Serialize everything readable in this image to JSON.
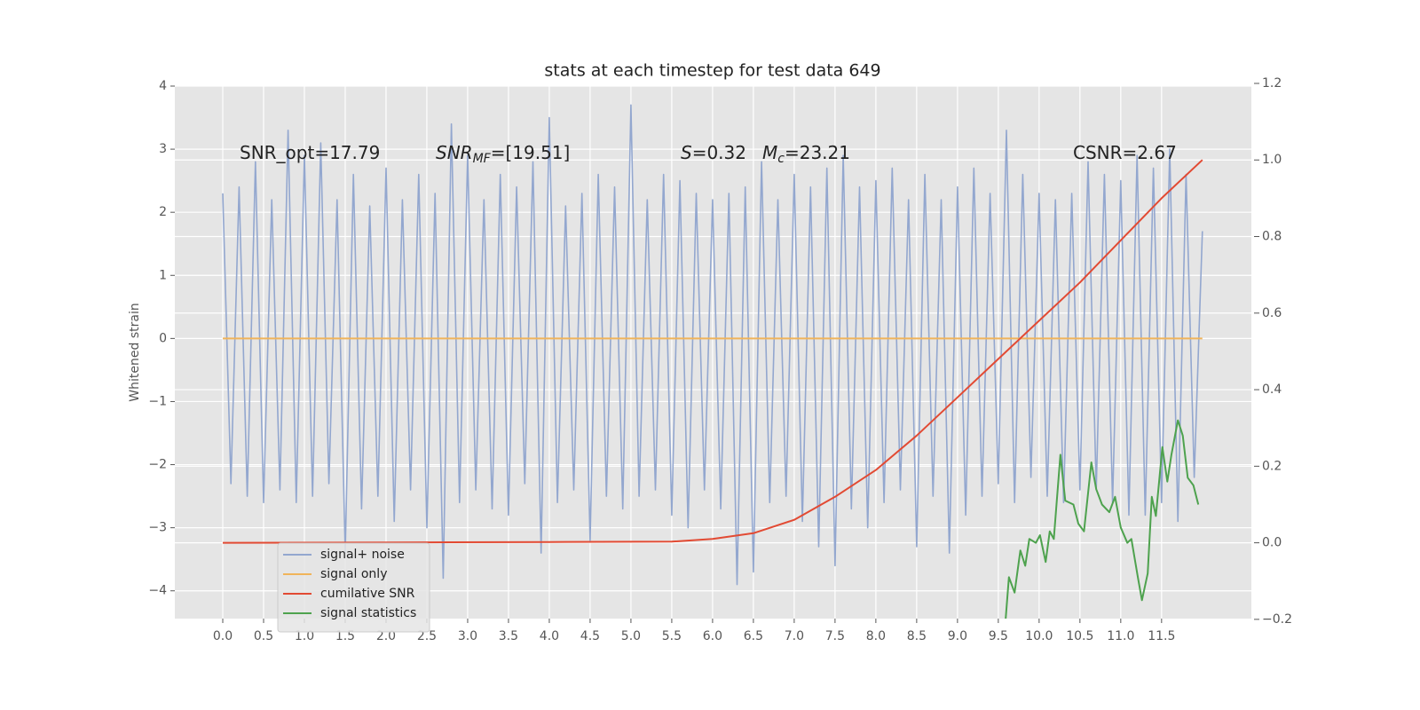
{
  "chart_data": {
    "type": "line",
    "title": "stats at each timestep for test data 649",
    "ylabel": "Whitened strain",
    "xlim": [
      -0.587,
      12.6
    ],
    "ylim": [
      -4.44,
      4.0
    ],
    "y2lim": [
      -0.198,
      1.193
    ],
    "grid": true,
    "legend": "lower left",
    "xticks": [
      {
        "value": 0,
        "label": "0.0"
      },
      {
        "value": 0.5,
        "label": "0.5"
      },
      {
        "value": 1,
        "label": "1.0"
      },
      {
        "value": 1.5,
        "label": "1.5"
      },
      {
        "value": 2,
        "label": "2.0"
      },
      {
        "value": 2.5,
        "label": "2.5"
      },
      {
        "value": 3,
        "label": "3.0"
      },
      {
        "value": 3.5,
        "label": "3.5"
      },
      {
        "value": 4,
        "label": "4.0"
      },
      {
        "value": 4.5,
        "label": "4.5"
      },
      {
        "value": 5,
        "label": "5.0"
      },
      {
        "value": 5.5,
        "label": "5.5"
      },
      {
        "value": 6,
        "label": "6.0"
      },
      {
        "value": 6.5,
        "label": "6.5"
      },
      {
        "value": 7,
        "label": "7.0"
      },
      {
        "value": 7.5,
        "label": "7.5"
      },
      {
        "value": 8,
        "label": "8.0"
      },
      {
        "value": 8.5,
        "label": "8.5"
      },
      {
        "value": 9,
        "label": "9.0"
      },
      {
        "value": 9.5,
        "label": "9.5"
      },
      {
        "value": 10,
        "label": "10.0"
      },
      {
        "value": 10.5,
        "label": "10.5"
      },
      {
        "value": 11,
        "label": "11.0"
      },
      {
        "value": 11.5,
        "label": "11.5"
      }
    ],
    "yticks": [
      4,
      3,
      2,
      1,
      0,
      {
        "value": -1,
        "label": "−1"
      },
      {
        "value": -2,
        "label": "−2"
      },
      {
        "value": -3,
        "label": "−3"
      },
      {
        "value": -4,
        "label": "−4"
      }
    ],
    "y2ticks": [
      1.2,
      {
        "value": 1,
        "label": "1.0"
      },
      0.8,
      0.6,
      0.4,
      0.2,
      {
        "value": 0,
        "label": "0.0"
      },
      {
        "value": -0.2,
        "label": "−0.2"
      }
    ],
    "annotations": [
      {
        "text": "SNR_opt=17.79"
      },
      {
        "text": "SNR",
        "sub": "MF",
        "rest": "=[19.51]"
      },
      {
        "text": "S",
        "rest": "=0.32"
      },
      {
        "text": "M",
        "sub": "c",
        "rest": "=23.21"
      },
      {
        "text": "CSNR=2.67"
      }
    ],
    "series": [
      {
        "name": "signal+ noise",
        "color": "#93a7cf",
        "x": [
          0,
          0.1,
          0.2,
          0.3,
          0.4,
          0.5,
          0.6,
          0.7,
          0.8,
          0.9,
          1,
          1.1,
          1.2,
          1.3,
          1.4,
          1.5,
          1.6,
          1.7,
          1.8,
          1.9,
          2,
          2.1,
          2.2,
          2.3,
          2.4,
          2.5,
          2.6,
          2.7,
          2.8,
          2.9,
          3,
          3.1,
          3.2,
          3.3,
          3.4,
          3.5,
          3.6,
          3.7,
          3.8,
          3.9,
          4,
          4.1,
          4.2,
          4.3,
          4.4,
          4.5,
          4.6,
          4.7,
          4.8,
          4.9,
          5,
          5.1,
          5.2,
          5.3,
          5.4,
          5.5,
          5.6,
          5.7,
          5.8,
          5.9,
          6,
          6.1,
          6.2,
          6.3,
          6.4,
          6.5,
          6.6,
          6.7,
          6.8,
          6.9,
          7,
          7.1,
          7.2,
          7.3,
          7.4,
          7.5,
          7.6,
          7.7,
          7.8,
          7.9,
          8,
          8.1,
          8.2,
          8.3,
          8.4,
          8.5,
          8.6,
          8.7,
          8.8,
          8.9,
          9,
          9.1,
          9.2,
          9.3,
          9.4,
          9.5,
          9.6,
          9.7,
          9.8,
          9.9,
          10,
          10.1,
          10.2,
          10.3,
          10.4,
          10.5,
          10.6,
          10.7,
          10.8,
          10.9,
          11,
          11.1,
          11.2,
          11.3,
          11.4,
          11.5,
          11.6,
          11.7,
          11.8,
          11.9,
          12
        ],
        "values": [
          2.3,
          -2.3,
          2.4,
          -2.5,
          2.8,
          -2.6,
          2.2,
          -2.4,
          3.3,
          -2.6,
          2.9,
          -2.5,
          3.1,
          -2.3,
          2.2,
          -3.4,
          2.6,
          -2.7,
          2.1,
          -2.5,
          2.7,
          -2.9,
          2.2,
          -2.4,
          2.6,
          -3.0,
          2.3,
          -3.8,
          3.4,
          -2.6,
          2.9,
          -2.4,
          2.2,
          -2.7,
          2.6,
          -2.8,
          2.4,
          -2.3,
          2.8,
          -3.4,
          3.5,
          -2.6,
          2.1,
          -2.4,
          2.3,
          -3.2,
          2.6,
          -2.5,
          2.4,
          -2.7,
          3.7,
          -2.5,
          2.2,
          -2.4,
          2.6,
          -2.8,
          2.5,
          -3.0,
          2.3,
          -2.4,
          2.2,
          -2.7,
          2.3,
          -3.9,
          2.4,
          -3.7,
          2.8,
          -2.6,
          2.2,
          -2.5,
          2.6,
          -2.9,
          2.4,
          -3.3,
          2.7,
          -3.6,
          2.9,
          -2.7,
          2.4,
          -3.0,
          2.5,
          -2.6,
          2.7,
          -2.4,
          2.2,
          -3.3,
          2.6,
          -2.5,
          2.2,
          -3.4,
          2.4,
          -2.8,
          2.7,
          -2.5,
          2.3,
          -2.3,
          3.3,
          -2.6,
          2.6,
          -2.2,
          2.3,
          -2.5,
          2.2,
          -2.6,
          2.3,
          -2.4,
          2.8,
          -2.4,
          2.6,
          -2.6,
          2.5,
          -2.8,
          2.9,
          -2.8,
          2.7,
          -2.6,
          3.0,
          -2.9,
          2.6,
          -2.2,
          1.7
        ]
      },
      {
        "name": "signal only",
        "color": "#f0b45a",
        "x": [
          0,
          6,
          10,
          12
        ],
        "values": [
          0,
          0,
          0,
          0
        ]
      },
      {
        "name": "cumilative SNR",
        "color": "#e24a33",
        "axis": "y2",
        "x": [
          0,
          2,
          4,
          5.5,
          6,
          6.5,
          7,
          7.5,
          8,
          8.5,
          9,
          9.5,
          10,
          10.5,
          11,
          11.5,
          12
        ],
        "values": [
          0,
          0.001,
          0.002,
          0.003,
          0.01,
          0.025,
          0.06,
          0.12,
          0.19,
          0.28,
          0.38,
          0.48,
          0.58,
          0.68,
          0.79,
          0.9,
          1.0
        ]
      },
      {
        "name": "signal statistics",
        "color": "#4ea24e",
        "axis": "y2",
        "x": [
          9.59,
          9.63,
          9.7,
          9.77,
          9.83,
          9.88,
          9.96,
          10.01,
          10.08,
          10.13,
          10.18,
          10.26,
          10.32,
          10.42,
          10.48,
          10.55,
          10.64,
          10.7,
          10.77,
          10.86,
          10.93,
          11.0,
          11.08,
          11.13,
          11.21,
          11.26,
          11.33,
          11.38,
          11.43,
          11.51,
          11.57,
          11.62,
          11.7,
          11.76,
          11.82,
          11.89,
          11.95
        ],
        "values": [
          -0.2,
          -0.09,
          -0.13,
          -0.02,
          -0.06,
          0.01,
          0.0,
          0.02,
          -0.05,
          0.03,
          0.01,
          0.23,
          0.11,
          0.1,
          0.05,
          0.03,
          0.21,
          0.14,
          0.1,
          0.08,
          0.12,
          0.04,
          0.0,
          0.01,
          -0.09,
          -0.15,
          -0.08,
          0.12,
          0.07,
          0.25,
          0.16,
          0.23,
          0.32,
          0.28,
          0.17,
          0.15,
          0.1
        ]
      }
    ]
  }
}
